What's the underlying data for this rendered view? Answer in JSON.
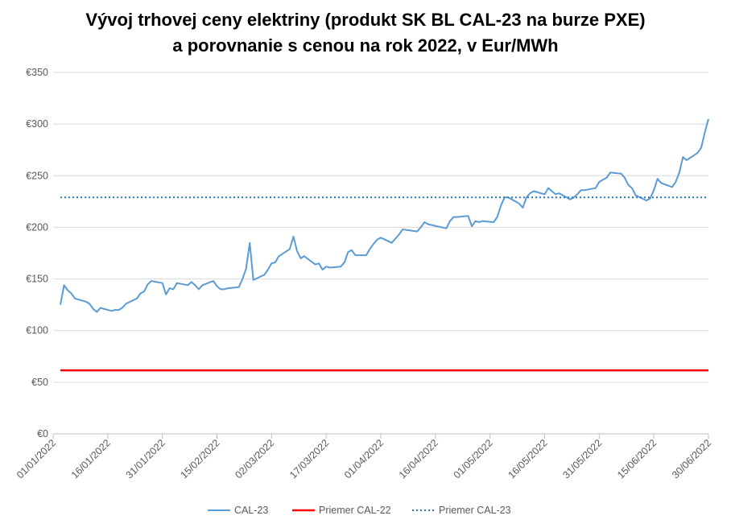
{
  "chart_data": {
    "type": "line",
    "title_line1": "Vývoj trhovej ceny elektriny (produkt SK BL CAL-23 na burze PXE)",
    "title_line2": "a porovnanie s cenou na rok 2022, v Eur/MWh",
    "ylim": [
      0,
      350
    ],
    "y_ticks": [
      0,
      50,
      100,
      150,
      200,
      250,
      300,
      350
    ],
    "y_tick_labels": [
      "€0",
      "€50",
      "€100",
      "€150",
      "€200",
      "€250",
      "€300",
      "€350"
    ],
    "x_range": [
      "2022-01-01",
      "2022-06-30"
    ],
    "x_ticks": [
      "2022-01-01",
      "2022-01-16",
      "2022-01-31",
      "2022-02-15",
      "2022-03-02",
      "2022-03-17",
      "2022-04-01",
      "2022-04-16",
      "2022-05-01",
      "2022-05-16",
      "2022-05-31",
      "2022-06-15",
      "2022-06-30"
    ],
    "x_tick_labels": [
      "01/01/2022",
      "16/01/2022",
      "31/01/2022",
      "15/02/2022",
      "02/03/2022",
      "17/03/2022",
      "01/04/2022",
      "16/04/2022",
      "01/05/2022",
      "16/05/2022",
      "31/05/2022",
      "15/06/2022",
      "30/06/2022"
    ],
    "grid": true,
    "legend_position": "bottom",
    "series": [
      {
        "name": "CAL-23",
        "color": "#5B9BD5",
        "style": "solid",
        "points": [
          [
            "2022-01-03",
            125
          ],
          [
            "2022-01-04",
            144
          ],
          [
            "2022-01-05",
            139
          ],
          [
            "2022-01-06",
            136
          ],
          [
            "2022-01-07",
            131
          ],
          [
            "2022-01-10",
            128
          ],
          [
            "2022-01-11",
            126
          ],
          [
            "2022-01-12",
            121
          ],
          [
            "2022-01-13",
            118
          ],
          [
            "2022-01-14",
            122
          ],
          [
            "2022-01-17",
            119
          ],
          [
            "2022-01-18",
            120
          ],
          [
            "2022-01-19",
            120
          ],
          [
            "2022-01-20",
            122
          ],
          [
            "2022-01-21",
            126
          ],
          [
            "2022-01-24",
            131
          ],
          [
            "2022-01-25",
            136
          ],
          [
            "2022-01-26",
            138
          ],
          [
            "2022-01-27",
            145
          ],
          [
            "2022-01-28",
            148
          ],
          [
            "2022-01-31",
            146
          ],
          [
            "2022-02-01",
            135
          ],
          [
            "2022-02-02",
            141
          ],
          [
            "2022-02-03",
            140
          ],
          [
            "2022-02-04",
            146
          ],
          [
            "2022-02-07",
            144
          ],
          [
            "2022-02-08",
            147
          ],
          [
            "2022-02-09",
            144
          ],
          [
            "2022-02-10",
            140
          ],
          [
            "2022-02-11",
            144
          ],
          [
            "2022-02-14",
            148
          ],
          [
            "2022-02-15",
            143
          ],
          [
            "2022-02-16",
            140
          ],
          [
            "2022-02-17",
            140
          ],
          [
            "2022-02-18",
            141
          ],
          [
            "2022-02-21",
            142
          ],
          [
            "2022-02-22",
            150
          ],
          [
            "2022-02-23",
            160
          ],
          [
            "2022-02-24",
            185
          ],
          [
            "2022-02-25",
            149
          ],
          [
            "2022-02-28",
            154
          ],
          [
            "2022-03-01",
            159
          ],
          [
            "2022-03-02",
            165
          ],
          [
            "2022-03-03",
            166
          ],
          [
            "2022-03-04",
            172
          ],
          [
            "2022-03-07",
            179
          ],
          [
            "2022-03-08",
            191
          ],
          [
            "2022-03-09",
            177
          ],
          [
            "2022-03-10",
            170
          ],
          [
            "2022-03-11",
            172
          ],
          [
            "2022-03-14",
            164
          ],
          [
            "2022-03-15",
            165
          ],
          [
            "2022-03-16",
            159
          ],
          [
            "2022-03-17",
            162
          ],
          [
            "2022-03-18",
            161
          ],
          [
            "2022-03-21",
            162
          ],
          [
            "2022-03-22",
            166
          ],
          [
            "2022-03-23",
            176
          ],
          [
            "2022-03-24",
            178
          ],
          [
            "2022-03-25",
            173
          ],
          [
            "2022-03-28",
            173
          ],
          [
            "2022-03-29",
            179
          ],
          [
            "2022-03-30",
            184
          ],
          [
            "2022-03-31",
            188
          ],
          [
            "2022-04-01",
            190
          ],
          [
            "2022-04-04",
            185
          ],
          [
            "2022-04-05",
            189
          ],
          [
            "2022-04-06",
            193
          ],
          [
            "2022-04-07",
            198
          ],
          [
            "2022-04-11",
            196
          ],
          [
            "2022-04-12",
            200
          ],
          [
            "2022-04-13",
            205
          ],
          [
            "2022-04-14",
            203
          ],
          [
            "2022-04-19",
            199
          ],
          [
            "2022-04-20",
            206
          ],
          [
            "2022-04-21",
            210
          ],
          [
            "2022-04-22",
            210
          ],
          [
            "2022-04-25",
            211
          ],
          [
            "2022-04-26",
            201
          ],
          [
            "2022-04-27",
            206
          ],
          [
            "2022-04-28",
            205
          ],
          [
            "2022-04-29",
            206
          ],
          [
            "2022-05-02",
            205
          ],
          [
            "2022-05-03",
            210
          ],
          [
            "2022-05-04",
            221
          ],
          [
            "2022-05-05",
            229
          ],
          [
            "2022-05-06",
            229
          ],
          [
            "2022-05-09",
            223
          ],
          [
            "2022-05-10",
            219
          ],
          [
            "2022-05-11",
            229
          ],
          [
            "2022-05-12",
            233
          ],
          [
            "2022-05-13",
            235
          ],
          [
            "2022-05-16",
            232
          ],
          [
            "2022-05-17",
            238
          ],
          [
            "2022-05-18",
            235
          ],
          [
            "2022-05-19",
            232
          ],
          [
            "2022-05-20",
            233
          ],
          [
            "2022-05-23",
            227
          ],
          [
            "2022-05-24",
            229
          ],
          [
            "2022-05-25",
            232
          ],
          [
            "2022-05-26",
            236
          ],
          [
            "2022-05-27",
            236
          ],
          [
            "2022-05-30",
            238
          ],
          [
            "2022-05-31",
            244
          ],
          [
            "2022-06-01",
            246
          ],
          [
            "2022-06-02",
            248
          ],
          [
            "2022-06-03",
            253
          ],
          [
            "2022-06-06",
            252
          ],
          [
            "2022-06-07",
            248
          ],
          [
            "2022-06-08",
            241
          ],
          [
            "2022-06-09",
            238
          ],
          [
            "2022-06-10",
            231
          ],
          [
            "2022-06-13",
            226
          ],
          [
            "2022-06-14",
            228
          ],
          [
            "2022-06-15",
            236
          ],
          [
            "2022-06-16",
            247
          ],
          [
            "2022-06-17",
            243
          ],
          [
            "2022-06-20",
            239
          ],
          [
            "2022-06-21",
            244
          ],
          [
            "2022-06-22",
            253
          ],
          [
            "2022-06-23",
            268
          ],
          [
            "2022-06-24",
            265
          ],
          [
            "2022-06-27",
            272
          ],
          [
            "2022-06-28",
            277
          ],
          [
            "2022-06-29",
            292
          ],
          [
            "2022-06-30",
            305
          ]
        ]
      },
      {
        "name": "Priemer CAL-22",
        "color": "#FF0000",
        "style": "solid",
        "points": [
          [
            "2022-01-03",
            61.5
          ],
          [
            "2022-06-30",
            61.5
          ]
        ]
      },
      {
        "name": "Priemer CAL-23",
        "color": "#2E75B6",
        "style": "dotted",
        "points": [
          [
            "2022-01-03",
            229
          ],
          [
            "2022-06-30",
            229
          ]
        ]
      }
    ]
  }
}
